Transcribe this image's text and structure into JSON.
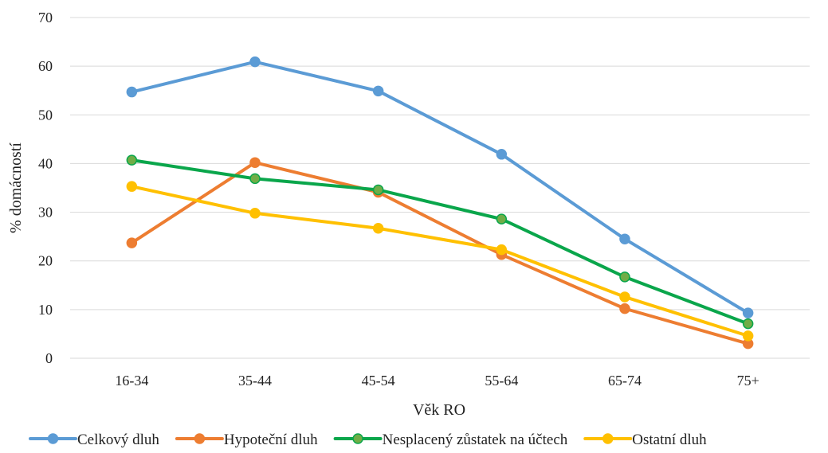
{
  "chart_data": {
    "type": "line",
    "title": "",
    "xlabel": "Věk RO",
    "ylabel": "% domácností",
    "categories": [
      "16-34",
      "35-44",
      "45-54",
      "55-64",
      "65-74",
      "75+"
    ],
    "ylim": [
      0,
      70
    ],
    "yticks": [
      0,
      10,
      20,
      30,
      40,
      50,
      60,
      70
    ],
    "grid": true,
    "legend_position": "bottom",
    "series": [
      {
        "name": "Celkový dluh",
        "color": "#5b9bd5",
        "values": [
          54.7,
          60.9,
          54.9,
          41.9,
          24.5,
          9.3
        ]
      },
      {
        "name": "Hypoteční dluh",
        "color": "#ed7d31",
        "values": [
          23.7,
          40.2,
          34.1,
          21.3,
          10.2,
          3.0
        ]
      },
      {
        "name": "Nesplacený zůstatek na účtech",
        "color": "#0aa64b",
        "marker_color": "#70ad47",
        "values": [
          40.7,
          36.9,
          34.6,
          28.6,
          16.7,
          7.1
        ]
      },
      {
        "name": "Ostatní dluh",
        "color": "#ffc000",
        "values": [
          35.3,
          29.8,
          26.7,
          22.3,
          12.6,
          4.6
        ]
      }
    ]
  }
}
